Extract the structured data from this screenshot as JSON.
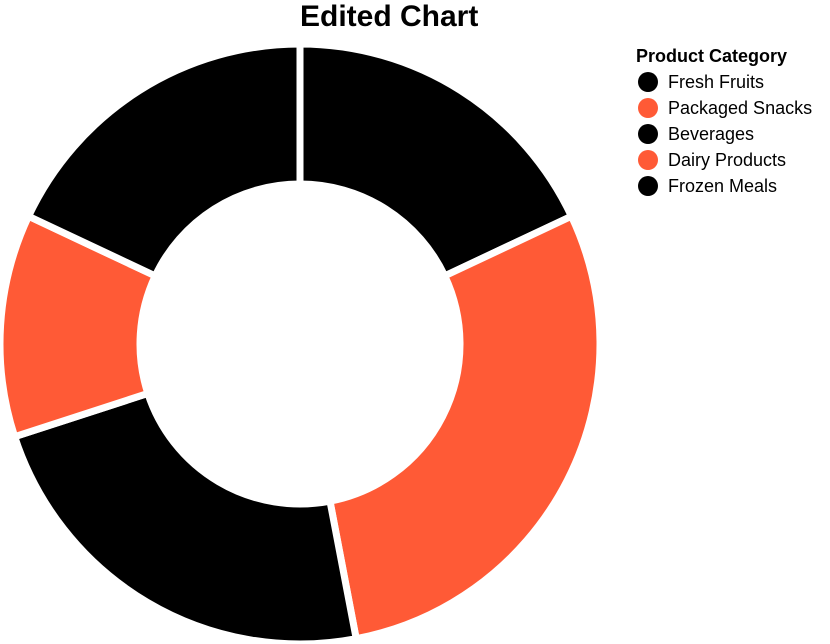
{
  "chart_data": {
    "type": "pie",
    "variant": "donut",
    "title": "Edited Chart",
    "legend": {
      "title": "Product Category",
      "placement": "top-right"
    },
    "categories": [
      "Fresh Fruits",
      "Packaged Snacks",
      "Beverages",
      "Dairy Products",
      "Frozen Meals"
    ],
    "values": [
      18,
      29,
      23,
      12,
      18
    ],
    "colors": [
      "#000000",
      "#ff5a36",
      "#000000",
      "#ff5a36",
      "#000000"
    ]
  }
}
